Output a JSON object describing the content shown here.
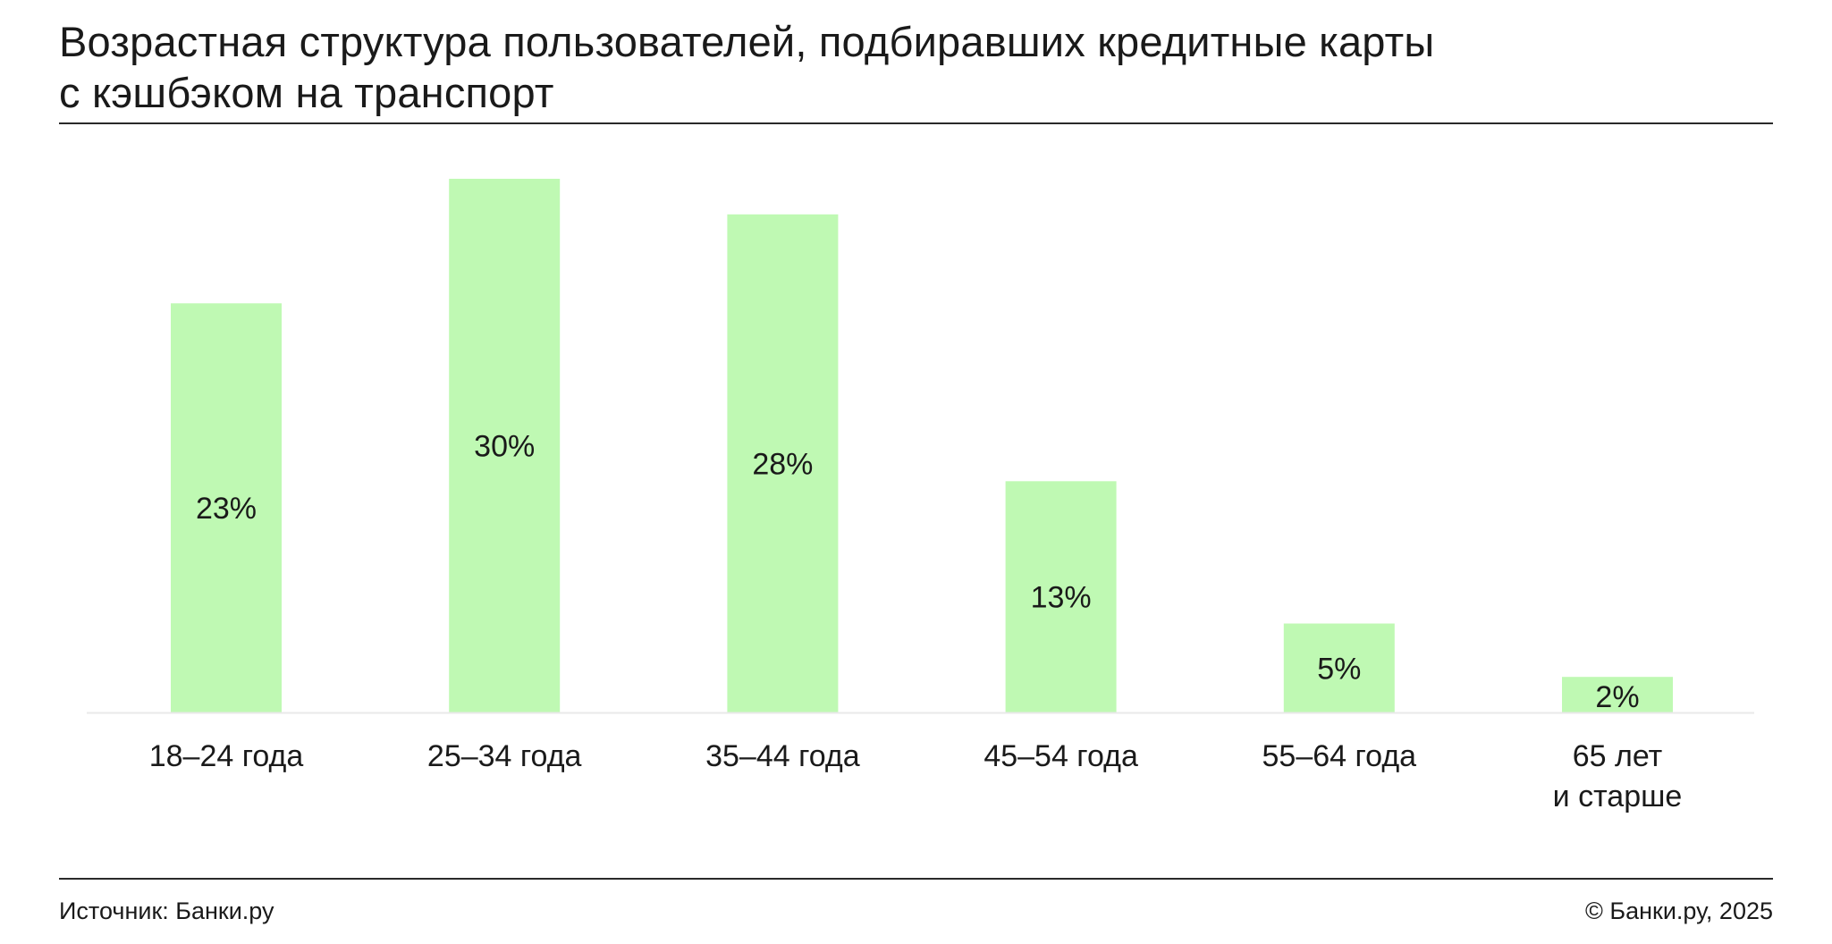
{
  "title_line1": "Возрастная структура пользователей, подбиравших кредитные карты",
  "title_line2": "с кэшбэком на транспорт",
  "footer": {
    "source": "Источник: Банки.ру",
    "copyright": "© Банки.ру, 2025"
  },
  "colors": {
    "bar": "#bff9b3",
    "text": "#1a1a1a",
    "baseline": "#e9e9e9"
  },
  "chart_data": {
    "type": "bar",
    "categories": [
      [
        "18–24 года"
      ],
      [
        "25–34 года"
      ],
      [
        "35–44 года"
      ],
      [
        "45–54 года"
      ],
      [
        "55–64 года"
      ],
      [
        "65 лет",
        "и старше"
      ]
    ],
    "values": [
      23,
      30,
      28,
      13,
      5,
      2
    ],
    "data_labels": [
      "23%",
      "30%",
      "28%",
      "13%",
      "5%",
      "2%"
    ],
    "unit": "%",
    "ylim": [
      0,
      30
    ],
    "grid": false,
    "legend": "none"
  }
}
